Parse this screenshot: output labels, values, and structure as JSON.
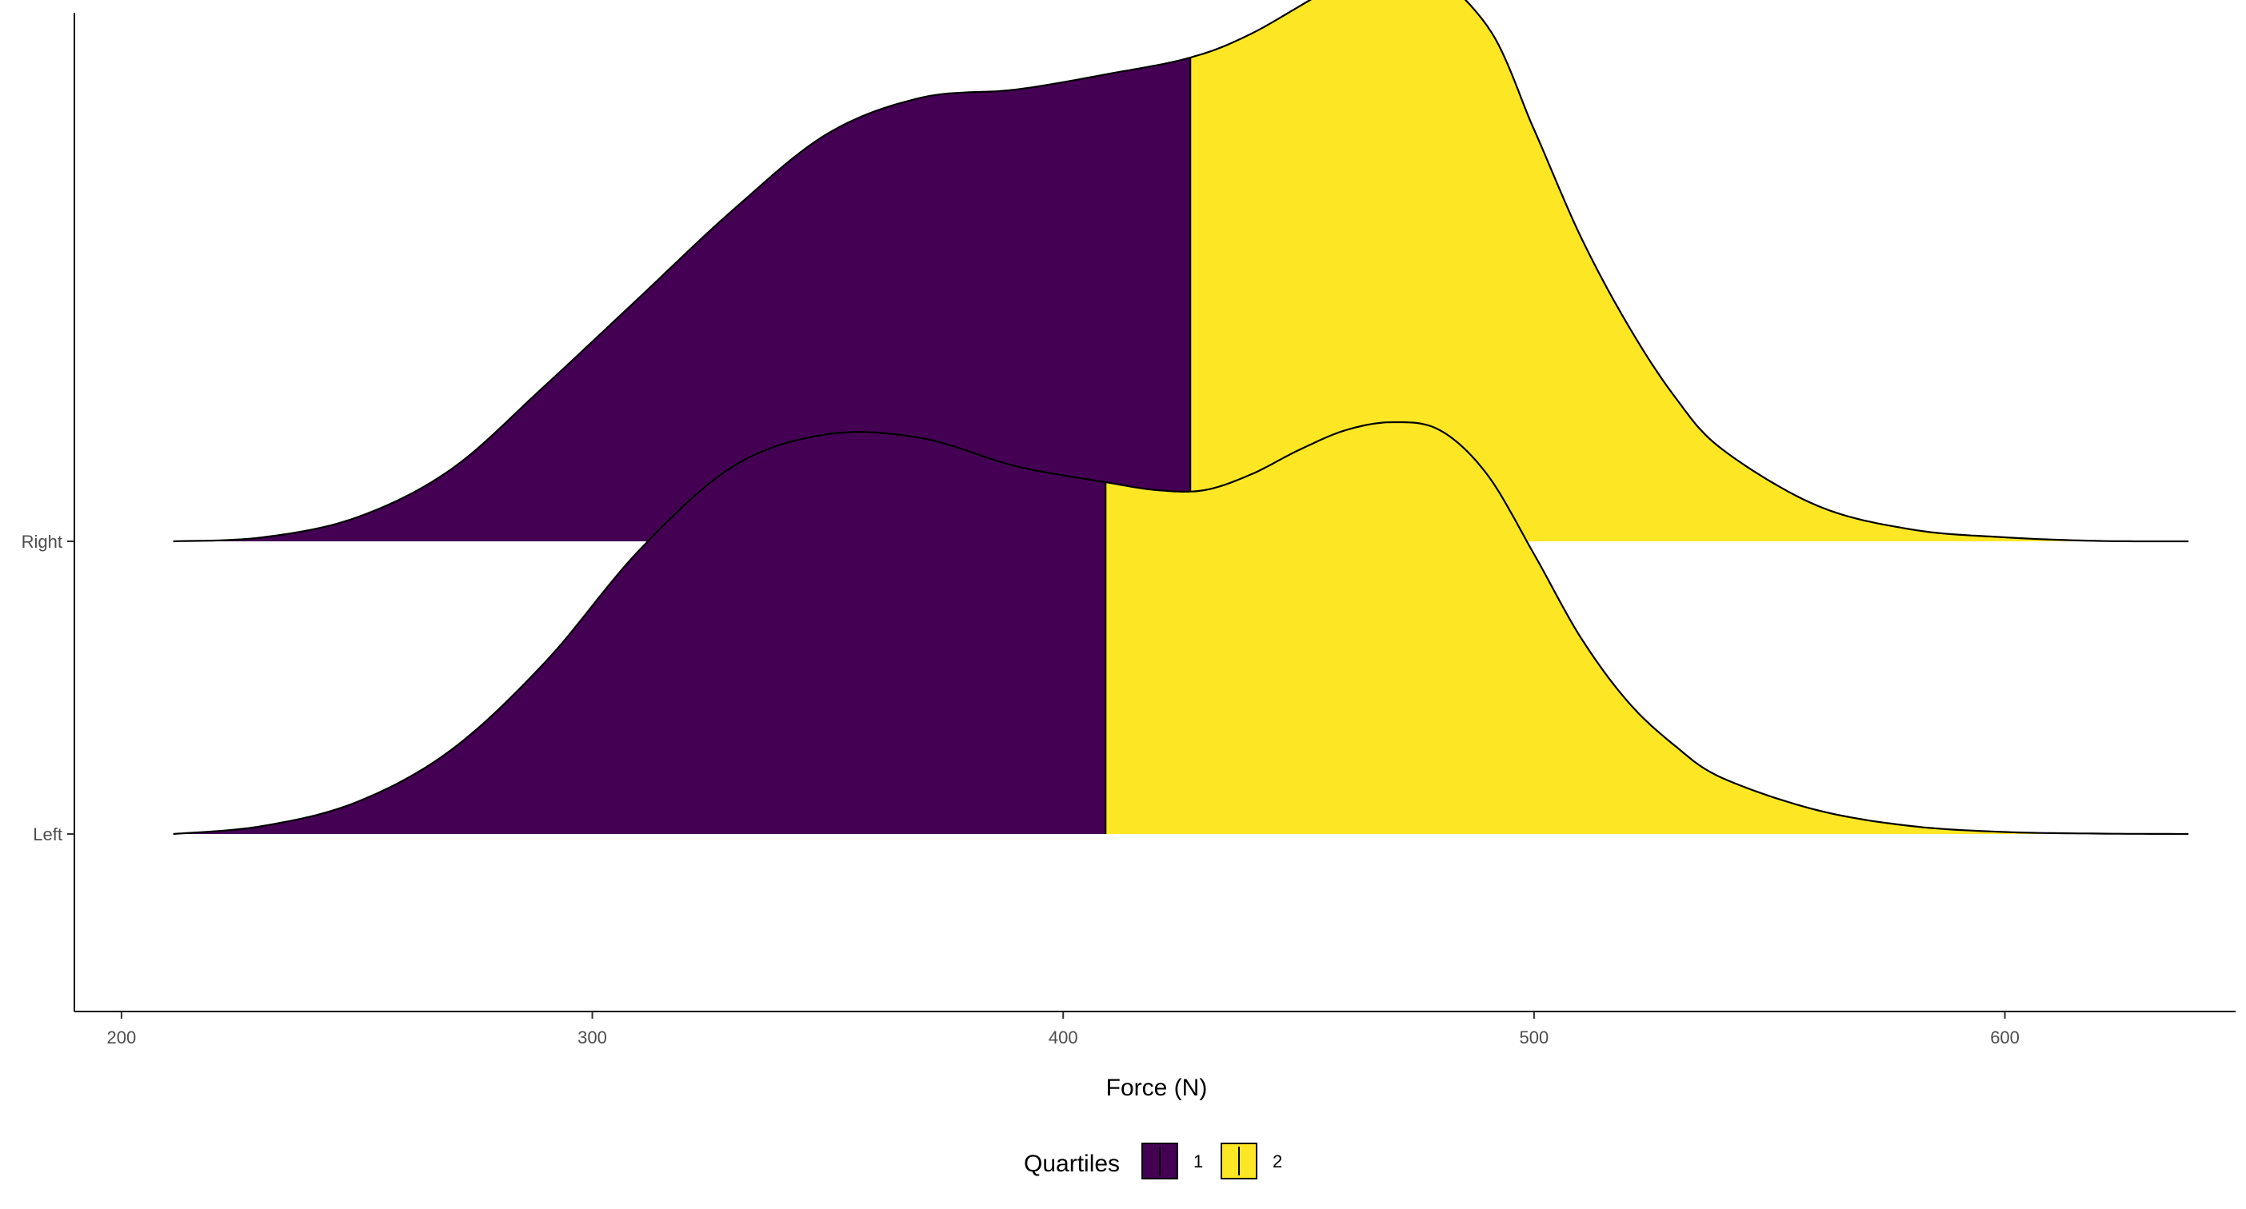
{
  "chart_data": {
    "type": "ridgeline",
    "xlabel": "Force (N)",
    "ylabel": "",
    "xlim": [
      190,
      649
    ],
    "xticks": [
      200,
      300,
      400,
      500,
      600
    ],
    "grid": false,
    "legend": {
      "title": "Quartiles",
      "position": "bottom",
      "entries": [
        {
          "label": "1",
          "color": "#440154"
        },
        {
          "label": "2",
          "color": "#FDE725"
        }
      ]
    },
    "categories": [
      "Left",
      "Right"
    ],
    "series": [
      {
        "name": "Left",
        "baseline": 1,
        "split_x": 409,
        "x": [
          211,
          230,
          250,
          270,
          290,
          310,
          330,
          350,
          370,
          390,
          409,
          420,
          430,
          440,
          450,
          460,
          470,
          480,
          490,
          500,
          510,
          520,
          530,
          540,
          560,
          580,
          600,
          620,
          639
        ],
        "density": [
          0.0,
          0.02,
          0.08,
          0.21,
          0.43,
          0.71,
          0.92,
          1.0,
          0.99,
          0.92,
          0.88,
          0.86,
          0.86,
          0.9,
          0.96,
          1.01,
          1.03,
          1.01,
          0.9,
          0.7,
          0.49,
          0.33,
          0.22,
          0.14,
          0.06,
          0.02,
          0.005,
          0.001,
          0.0
        ]
      },
      {
        "name": "Right",
        "baseline": 2,
        "split_x": 427,
        "x": [
          211,
          230,
          250,
          270,
          290,
          310,
          330,
          350,
          370,
          390,
          410,
          427,
          440,
          460,
          475,
          490,
          500,
          510,
          520,
          530,
          540,
          560,
          580,
          600,
          620,
          639
        ],
        "density": [
          0.0,
          0.01,
          0.06,
          0.18,
          0.39,
          0.61,
          0.83,
          1.02,
          1.11,
          1.13,
          1.17,
          1.21,
          1.27,
          1.4,
          1.44,
          1.29,
          1.03,
          0.76,
          0.54,
          0.36,
          0.23,
          0.09,
          0.03,
          0.01,
          0.001,
          0.0
        ]
      }
    ]
  }
}
